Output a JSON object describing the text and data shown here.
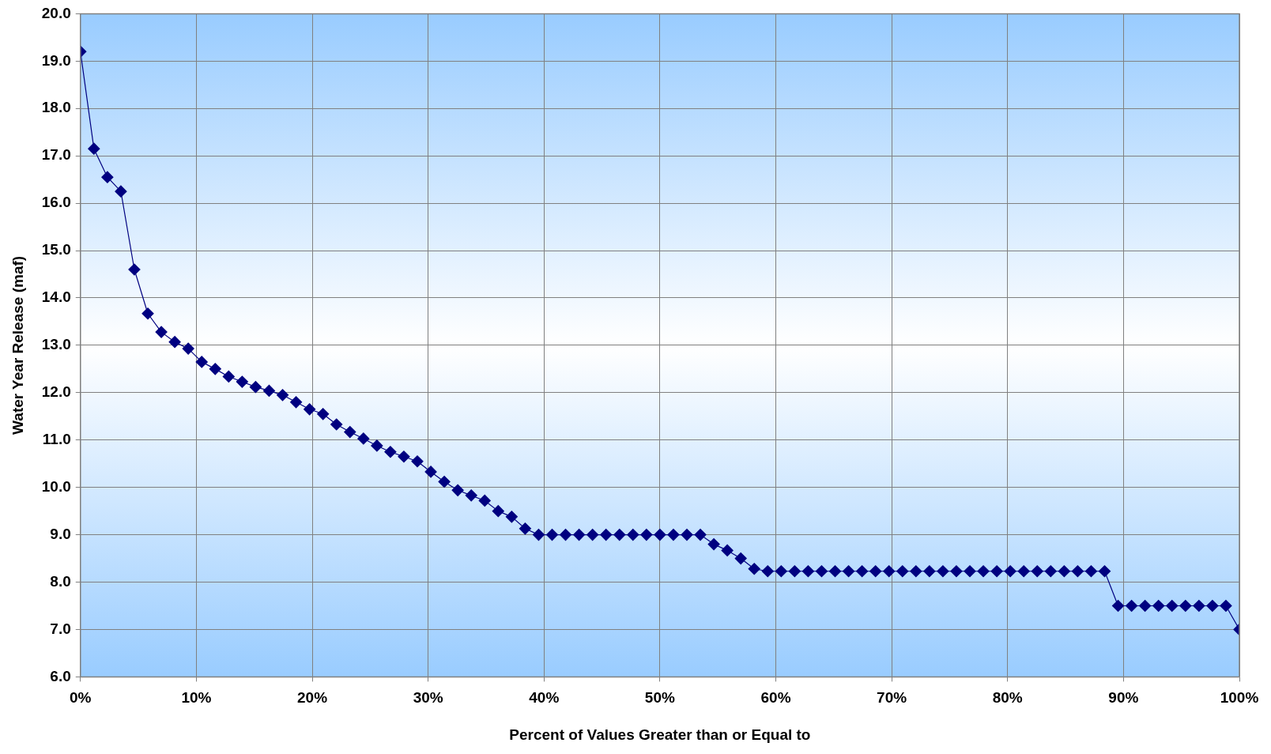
{
  "chart_data": {
    "type": "line",
    "xlabel": "Percent of Values Greater than or Equal to",
    "ylabel": "Water Year Release (maf)",
    "x": [
      0,
      1.163,
      2.326,
      3.488,
      4.651,
      5.814,
      6.977,
      8.14,
      9.302,
      10.465,
      11.628,
      12.791,
      13.953,
      15.116,
      16.279,
      17.442,
      18.605,
      19.767,
      20.93,
      22.093,
      23.256,
      24.419,
      25.581,
      26.744,
      27.907,
      29.07,
      30.233,
      31.395,
      32.558,
      33.721,
      34.884,
      36.047,
      37.209,
      38.372,
      39.535,
      40.698,
      41.86,
      43.023,
      44.186,
      45.349,
      46.512,
      47.674,
      48.837,
      50,
      51.163,
      52.326,
      53.488,
      54.651,
      55.814,
      56.977,
      58.14,
      59.302,
      60.465,
      61.628,
      62.791,
      63.953,
      65.116,
      66.279,
      67.442,
      68.605,
      69.767,
      70.93,
      72.093,
      73.256,
      74.419,
      75.581,
      76.744,
      77.907,
      79.07,
      80.233,
      81.395,
      82.558,
      83.721,
      84.884,
      86.047,
      87.209,
      88.372,
      89.535,
      90.698,
      91.86,
      93.023,
      94.186,
      95.349,
      96.512,
      97.674,
      98.837,
      100
    ],
    "series": [
      {
        "color": "#000080",
        "values": [
          19.2,
          17.15,
          16.55,
          16.25,
          14.6,
          13.67,
          13.28,
          13.07,
          12.93,
          12.65,
          12.5,
          12.34,
          12.23,
          12.12,
          12.04,
          11.95,
          11.8,
          11.65,
          11.55,
          11.33,
          11.17,
          11.03,
          10.88,
          10.75,
          10.65,
          10.55,
          10.33,
          10.12,
          9.94,
          9.83,
          9.72,
          9.5,
          9.38,
          9.13,
          9.0,
          9.0,
          9.0,
          9.0,
          9.0,
          9.0,
          9.0,
          9.0,
          9.0,
          9.0,
          9.0,
          9.0,
          9.0,
          8.8,
          8.67,
          8.5,
          8.28,
          8.23,
          8.23,
          8.23,
          8.23,
          8.23,
          8.23,
          8.23,
          8.23,
          8.23,
          8.23,
          8.23,
          8.23,
          8.23,
          8.23,
          8.23,
          8.23,
          8.23,
          8.23,
          8.23,
          8.23,
          8.23,
          8.23,
          8.23,
          8.23,
          8.23,
          8.23,
          7.5,
          7.5,
          7.5,
          7.5,
          7.5,
          7.5,
          7.5,
          7.5,
          7.5,
          7.0
        ]
      }
    ],
    "xlim": [
      0,
      100
    ],
    "xticks": [
      {
        "value": 0,
        "label": "0%"
      },
      {
        "value": 10,
        "label": "10%"
      },
      {
        "value": 20,
        "label": "20%"
      },
      {
        "value": 30,
        "label": "30%"
      },
      {
        "value": 40,
        "label": "40%"
      },
      {
        "value": 50,
        "label": "50%"
      },
      {
        "value": 60,
        "label": "60%"
      },
      {
        "value": 70,
        "label": "70%"
      },
      {
        "value": 80,
        "label": "80%"
      },
      {
        "value": 90,
        "label": "90%"
      },
      {
        "value": 100,
        "label": "100%"
      }
    ],
    "ylim": [
      6,
      20
    ],
    "yticks": [
      {
        "value": 6,
        "label": "6.0"
      },
      {
        "value": 7,
        "label": "7.0"
      },
      {
        "value": 8,
        "label": "8.0"
      },
      {
        "value": 9,
        "label": "9.0"
      },
      {
        "value": 10,
        "label": "10.0"
      },
      {
        "value": 11,
        "label": "11.0"
      },
      {
        "value": 12,
        "label": "12.0"
      },
      {
        "value": 13,
        "label": "13.0"
      },
      {
        "value": 14,
        "label": "14.0"
      },
      {
        "value": 15,
        "label": "15.0"
      },
      {
        "value": 16,
        "label": "16.0"
      },
      {
        "value": 17,
        "label": "17.0"
      },
      {
        "value": 18,
        "label": "18.0"
      },
      {
        "value": 19,
        "label": "19.0"
      },
      {
        "value": 20,
        "label": "20.0"
      }
    ],
    "grid": true,
    "marker": "diamond",
    "line_style": "solid"
  }
}
